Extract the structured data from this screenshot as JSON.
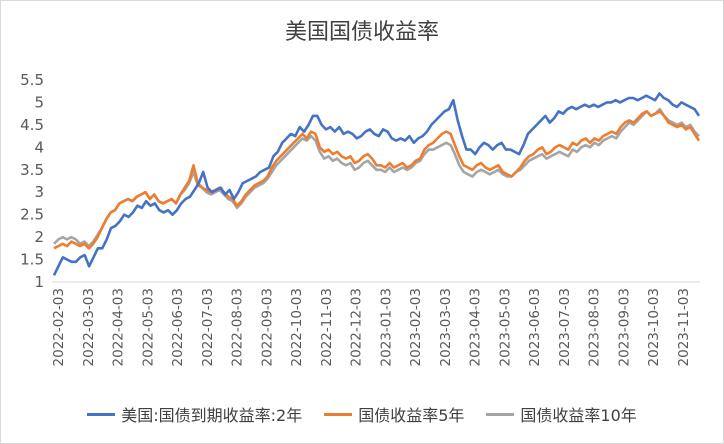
{
  "chart_data": {
    "type": "line",
    "title": "美国国债收益率",
    "xlabel": "",
    "ylabel": "",
    "ylim": [
      1,
      5.5
    ],
    "yticks": [
      "1",
      "1.5",
      "2",
      "2.5",
      "3",
      "3.5",
      "4",
      "4.5",
      "5",
      "5.5"
    ],
    "xticks": [
      "2022-02-03",
      "2022-03-03",
      "2022-04-03",
      "2022-05-03",
      "2022-06-03",
      "2022-07-03",
      "2022-08-03",
      "2022-09-03",
      "2022-10-03",
      "2022-11-03",
      "2022-12-03",
      "2023-01-03",
      "2023-02-03",
      "2023-03-03",
      "2023-04-03",
      "2023-05-03",
      "2023-06-03",
      "2023-07-03",
      "2023-08-03",
      "2023-09-03",
      "2023-10-03",
      "2023-11-03"
    ],
    "grid": false,
    "legend": "bottom",
    "series": [
      {
        "name": "美国:国债到期收益率:2年",
        "color": "#4472C4",
        "values": [
          1.15,
          1.35,
          1.55,
          1.5,
          1.45,
          1.45,
          1.55,
          1.6,
          1.35,
          1.55,
          1.75,
          1.75,
          1.95,
          2.2,
          2.25,
          2.35,
          2.5,
          2.45,
          2.55,
          2.7,
          2.65,
          2.8,
          2.7,
          2.75,
          2.6,
          2.55,
          2.6,
          2.5,
          2.6,
          2.75,
          2.85,
          2.9,
          3.05,
          3.2,
          3.45,
          3.1,
          3.0,
          3.05,
          3.1,
          2.95,
          3.05,
          2.85,
          3.0,
          3.2,
          3.25,
          3.3,
          3.35,
          3.45,
          3.5,
          3.55,
          3.8,
          3.9,
          4.1,
          4.2,
          4.3,
          4.25,
          4.45,
          4.35,
          4.5,
          4.7,
          4.7,
          4.5,
          4.4,
          4.45,
          4.35,
          4.45,
          4.3,
          4.35,
          4.3,
          4.2,
          4.25,
          4.35,
          4.4,
          4.3,
          4.25,
          4.4,
          4.35,
          4.2,
          4.15,
          4.2,
          4.15,
          4.25,
          4.1,
          4.2,
          4.25,
          4.35,
          4.5,
          4.6,
          4.7,
          4.8,
          4.85,
          5.05,
          4.6,
          4.25,
          3.95,
          3.95,
          3.85,
          4.0,
          4.1,
          4.05,
          3.95,
          4.05,
          4.1,
          3.95,
          3.95,
          3.9,
          3.85,
          4.05,
          4.3,
          4.4,
          4.5,
          4.6,
          4.7,
          4.55,
          4.65,
          4.8,
          4.75,
          4.85,
          4.9,
          4.85,
          4.9,
          4.95,
          4.9,
          4.95,
          4.9,
          4.95,
          5.0,
          5.0,
          5.05,
          5.0,
          5.05,
          5.1,
          5.1,
          5.05,
          5.1,
          5.15,
          5.1,
          5.05,
          5.2,
          5.1,
          5.05,
          4.95,
          4.9,
          5.0,
          4.95,
          4.9,
          4.85,
          4.7
        ]
      },
      {
        "name": "国债收益率5年",
        "color": "#ED7D31",
        "values": [
          1.75,
          1.8,
          1.85,
          1.8,
          1.9,
          1.85,
          1.8,
          1.85,
          1.75,
          1.85,
          2.0,
          2.2,
          2.4,
          2.55,
          2.6,
          2.75,
          2.8,
          2.85,
          2.8,
          2.9,
          2.95,
          3.0,
          2.85,
          2.95,
          2.8,
          2.75,
          2.8,
          2.85,
          2.75,
          2.95,
          3.1,
          3.25,
          3.6,
          3.2,
          3.1,
          3.05,
          3.0,
          3.05,
          3.1,
          3.0,
          2.9,
          2.85,
          2.7,
          2.8,
          2.95,
          3.05,
          3.15,
          3.2,
          3.25,
          3.35,
          3.55,
          3.7,
          3.8,
          3.9,
          4.0,
          4.1,
          4.2,
          4.3,
          4.2,
          4.35,
          4.3,
          4.0,
          3.9,
          3.95,
          3.85,
          3.9,
          3.8,
          3.75,
          3.8,
          3.65,
          3.7,
          3.8,
          3.85,
          3.75,
          3.6,
          3.6,
          3.55,
          3.65,
          3.55,
          3.6,
          3.65,
          3.55,
          3.6,
          3.7,
          3.75,
          3.95,
          4.05,
          4.1,
          4.2,
          4.3,
          4.35,
          4.3,
          4.05,
          3.8,
          3.6,
          3.55,
          3.5,
          3.6,
          3.65,
          3.55,
          3.5,
          3.55,
          3.6,
          3.45,
          3.4,
          3.35,
          3.45,
          3.55,
          3.7,
          3.8,
          3.85,
          3.95,
          4.0,
          3.85,
          3.9,
          4.0,
          4.05,
          4.0,
          3.95,
          4.1,
          4.05,
          4.15,
          4.2,
          4.1,
          4.2,
          4.15,
          4.25,
          4.3,
          4.35,
          4.3,
          4.45,
          4.55,
          4.6,
          4.55,
          4.65,
          4.75,
          4.8,
          4.7,
          4.75,
          4.8,
          4.7,
          4.55,
          4.5,
          4.45,
          4.5,
          4.4,
          4.45,
          4.3,
          4.15
        ]
      },
      {
        "name": "国债收益率10年",
        "color": "#A5A5A5",
        "values": [
          1.85,
          1.95,
          2.0,
          1.95,
          2.0,
          1.95,
          1.85,
          1.9,
          1.8,
          1.9,
          2.05,
          2.2,
          2.4,
          2.55,
          2.6,
          2.75,
          2.8,
          2.85,
          2.8,
          2.9,
          2.95,
          3.0,
          2.85,
          2.95,
          2.8,
          2.75,
          2.8,
          2.85,
          2.75,
          2.95,
          3.05,
          3.2,
          3.45,
          3.15,
          3.1,
          3.0,
          2.95,
          3.0,
          3.05,
          2.95,
          2.85,
          2.8,
          2.65,
          2.75,
          2.9,
          3.0,
          3.1,
          3.15,
          3.2,
          3.3,
          3.45,
          3.6,
          3.7,
          3.8,
          3.9,
          4.0,
          4.1,
          4.2,
          4.15,
          4.25,
          4.15,
          3.9,
          3.75,
          3.8,
          3.7,
          3.75,
          3.65,
          3.6,
          3.65,
          3.5,
          3.55,
          3.65,
          3.7,
          3.6,
          3.5,
          3.5,
          3.45,
          3.55,
          3.45,
          3.5,
          3.55,
          3.5,
          3.55,
          3.65,
          3.7,
          3.85,
          3.95,
          3.95,
          4.0,
          4.05,
          4.1,
          4.05,
          3.85,
          3.6,
          3.45,
          3.4,
          3.35,
          3.45,
          3.5,
          3.45,
          3.4,
          3.45,
          3.5,
          3.4,
          3.35,
          3.35,
          3.45,
          3.5,
          3.6,
          3.7,
          3.75,
          3.8,
          3.85,
          3.75,
          3.8,
          3.85,
          3.9,
          3.85,
          3.8,
          3.95,
          3.9,
          4.0,
          4.05,
          4.0,
          4.1,
          4.05,
          4.15,
          4.2,
          4.25,
          4.2,
          4.35,
          4.45,
          4.55,
          4.5,
          4.6,
          4.7,
          4.8,
          4.7,
          4.75,
          4.85,
          4.7,
          4.6,
          4.55,
          4.5,
          4.55,
          4.45,
          4.5,
          4.35,
          4.25
        ]
      }
    ]
  }
}
